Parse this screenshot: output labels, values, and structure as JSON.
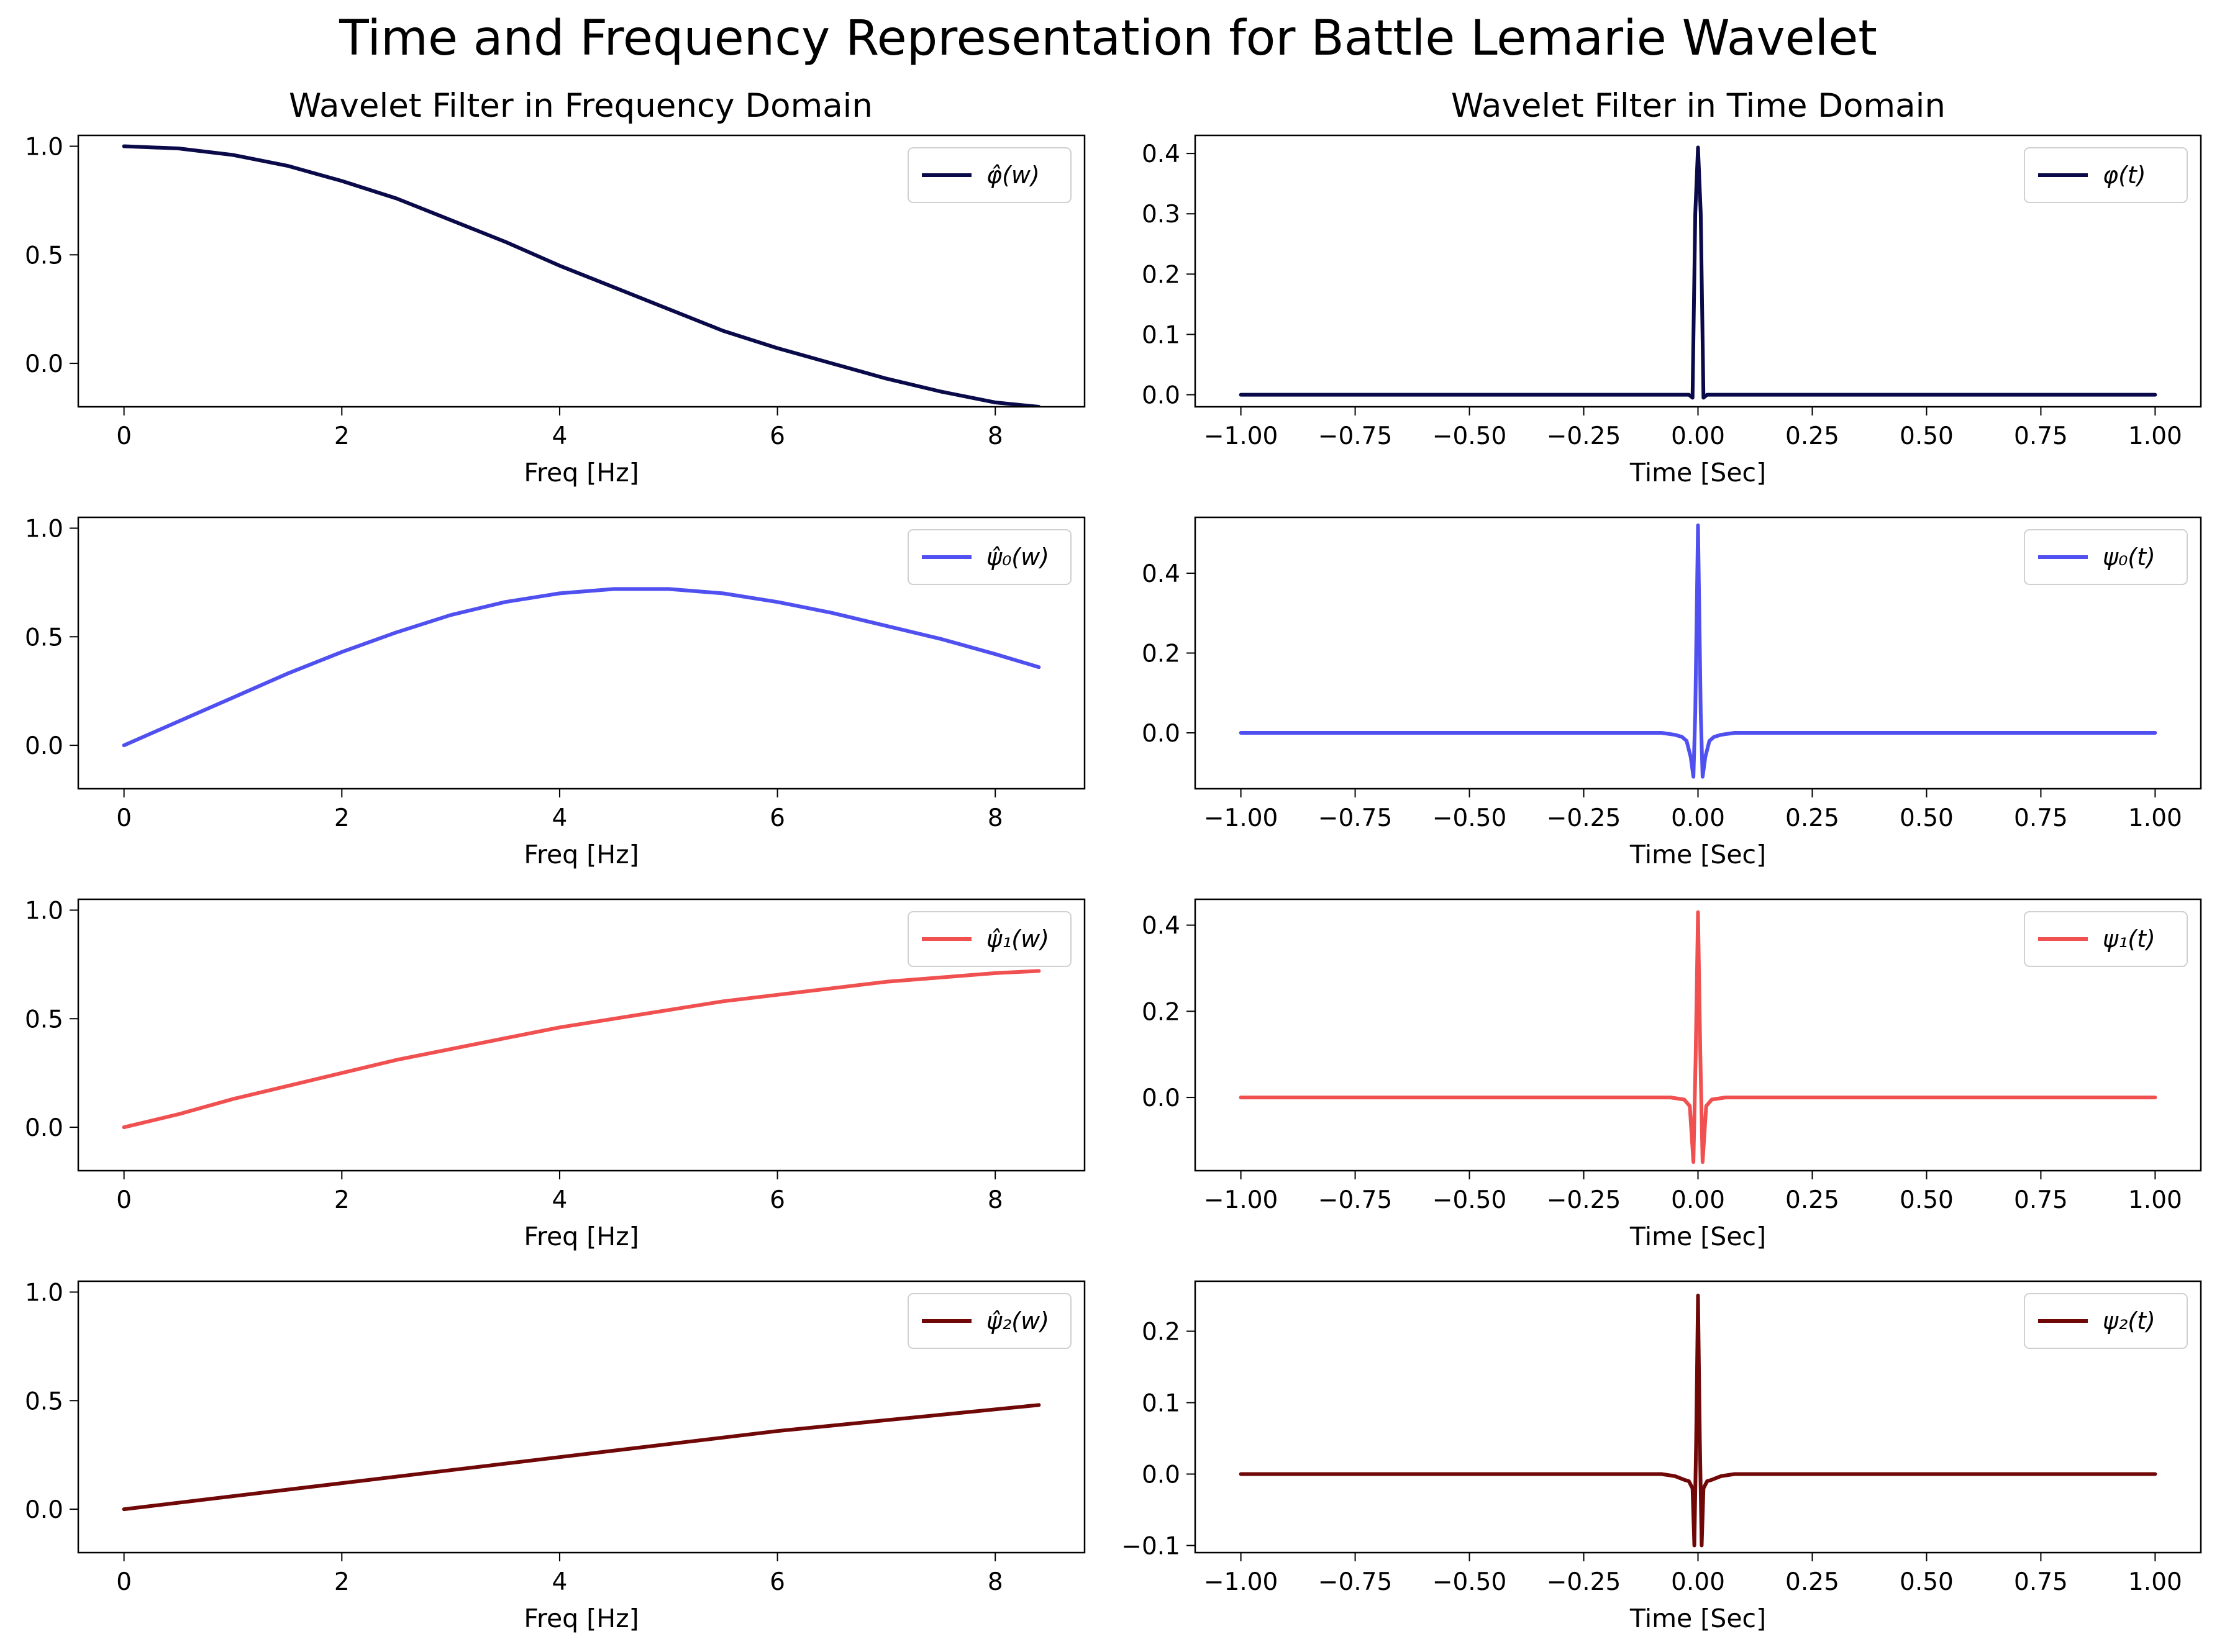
{
  "figure": {
    "title": "Time and Frequency Representation for Battle Lemarie Wavelet",
    "columns": [
      {
        "title": "Wavelet Filter in Frequency Domain"
      },
      {
        "title": "Wavelet Filter in Time Domain"
      }
    ]
  },
  "chart_data": [
    {
      "type": "line",
      "panel": "freq-0",
      "xlabel": "Freq [Hz]",
      "xlim": [
        -0.42,
        8.82
      ],
      "ylim": [
        -0.2,
        1.05
      ],
      "xticks": [
        0,
        2,
        4,
        6,
        8
      ],
      "xtick_labels": [
        "0",
        "2",
        "4",
        "6",
        "8"
      ],
      "yticks": [
        0.0,
        0.5,
        1.0
      ],
      "ytick_labels": [
        "0.0",
        "0.5",
        "1.0"
      ],
      "legend": "upper right",
      "series": [
        {
          "name": "φ̂(w)",
          "color": "#0a0a4a",
          "x": [
            0,
            0.5,
            1,
            1.5,
            2,
            2.5,
            3,
            3.5,
            4,
            4.5,
            5,
            5.5,
            6,
            6.5,
            7,
            7.5,
            8,
            8.4
          ],
          "y": [
            1.0,
            0.99,
            0.96,
            0.91,
            0.84,
            0.76,
            0.66,
            0.56,
            0.45,
            0.35,
            0.25,
            0.15,
            0.07,
            0.0,
            -0.07,
            -0.13,
            -0.18,
            -0.2
          ]
        }
      ]
    },
    {
      "type": "line",
      "panel": "time-0",
      "xlabel": "Time [Sec]",
      "xlim": [
        -1.1,
        1.1
      ],
      "ylim": [
        -0.02,
        0.43
      ],
      "xticks": [
        -1.0,
        -0.75,
        -0.5,
        -0.25,
        0.0,
        0.25,
        0.5,
        0.75,
        1.0
      ],
      "xtick_labels": [
        "−1.00",
        "−0.75",
        "−0.50",
        "−0.25",
        "0.00",
        "0.25",
        "0.50",
        "0.75",
        "1.00"
      ],
      "yticks": [
        0.0,
        0.1,
        0.2,
        0.3,
        0.4
      ],
      "ytick_labels": [
        "0.0",
        "0.1",
        "0.2",
        "0.3",
        "0.4"
      ],
      "legend": "upper right",
      "series": [
        {
          "name": "φ(t)",
          "color": "#0a0a4a",
          "x": [
            -1.0,
            -0.02,
            -0.012,
            -0.006,
            0.0,
            0.006,
            0.012,
            0.02,
            1.0
          ],
          "y": [
            0.0,
            0.0,
            -0.005,
            0.3,
            0.41,
            0.3,
            -0.005,
            0.0,
            0.0
          ]
        }
      ]
    },
    {
      "type": "line",
      "panel": "freq-1",
      "xlabel": "Freq [Hz]",
      "xlim": [
        -0.42,
        8.82
      ],
      "ylim": [
        -0.2,
        1.05
      ],
      "xticks": [
        0,
        2,
        4,
        6,
        8
      ],
      "xtick_labels": [
        "0",
        "2",
        "4",
        "6",
        "8"
      ],
      "yticks": [
        0.0,
        0.5,
        1.0
      ],
      "ytick_labels": [
        "0.0",
        "0.5",
        "1.0"
      ],
      "legend": "upper right",
      "series": [
        {
          "name": "ψ̂₀(w)",
          "color": "#5050f0",
          "x": [
            0,
            0.5,
            1,
            1.5,
            2,
            2.5,
            3,
            3.5,
            4,
            4.5,
            5,
            5.5,
            6,
            6.5,
            7,
            7.5,
            8,
            8.4
          ],
          "y": [
            0.0,
            0.11,
            0.22,
            0.33,
            0.43,
            0.52,
            0.6,
            0.66,
            0.7,
            0.72,
            0.72,
            0.7,
            0.66,
            0.61,
            0.55,
            0.49,
            0.42,
            0.36
          ]
        }
      ]
    },
    {
      "type": "line",
      "panel": "time-1",
      "xlabel": "Time [Sec]",
      "xlim": [
        -1.1,
        1.1
      ],
      "ylim": [
        -0.14,
        0.54
      ],
      "xticks": [
        -1.0,
        -0.75,
        -0.5,
        -0.25,
        0.0,
        0.25,
        0.5,
        0.75,
        1.0
      ],
      "xtick_labels": [
        "−1.00",
        "−0.75",
        "−0.50",
        "−0.25",
        "0.00",
        "0.25",
        "0.50",
        "0.75",
        "1.00"
      ],
      "yticks": [
        0.0,
        0.2,
        0.4
      ],
      "ytick_labels": [
        "0.0",
        "0.2",
        "0.4"
      ],
      "legend": "upper right",
      "series": [
        {
          "name": "ψ₀(t)",
          "color": "#5050f0",
          "x": [
            -1.0,
            -0.08,
            -0.05,
            -0.035,
            -0.025,
            -0.016,
            -0.01,
            -0.006,
            0.0,
            0.006,
            0.01,
            0.016,
            0.025,
            0.035,
            0.05,
            0.08,
            1.0
          ],
          "y": [
            0.0,
            0.0,
            -0.005,
            -0.01,
            -0.02,
            -0.06,
            -0.11,
            0.05,
            0.52,
            0.05,
            -0.11,
            -0.06,
            -0.02,
            -0.01,
            -0.005,
            0.0,
            0.0
          ]
        }
      ]
    },
    {
      "type": "line",
      "panel": "freq-2",
      "xlabel": "Freq [Hz]",
      "xlim": [
        -0.42,
        8.82
      ],
      "ylim": [
        -0.2,
        1.05
      ],
      "xticks": [
        0,
        2,
        4,
        6,
        8
      ],
      "xtick_labels": [
        "0",
        "2",
        "4",
        "6",
        "8"
      ],
      "yticks": [
        0.0,
        0.5,
        1.0
      ],
      "ytick_labels": [
        "0.0",
        "0.5",
        "1.0"
      ],
      "legend": "upper right",
      "series": [
        {
          "name": "ψ̂₁(w)",
          "color": "#f05050",
          "x": [
            0,
            0.5,
            1,
            1.5,
            2,
            2.5,
            3,
            3.5,
            4,
            4.5,
            5,
            5.5,
            6,
            6.5,
            7,
            7.5,
            8,
            8.4
          ],
          "y": [
            0.0,
            0.06,
            0.13,
            0.19,
            0.25,
            0.31,
            0.36,
            0.41,
            0.46,
            0.5,
            0.54,
            0.58,
            0.61,
            0.64,
            0.67,
            0.69,
            0.71,
            0.72
          ]
        }
      ]
    },
    {
      "type": "line",
      "panel": "time-2",
      "xlabel": "Time [Sec]",
      "xlim": [
        -1.1,
        1.1
      ],
      "ylim": [
        -0.17,
        0.46
      ],
      "xticks": [
        -1.0,
        -0.75,
        -0.5,
        -0.25,
        0.0,
        0.25,
        0.5,
        0.75,
        1.0
      ],
      "xtick_labels": [
        "−1.00",
        "−0.75",
        "−0.50",
        "−0.25",
        "0.00",
        "0.25",
        "0.50",
        "0.75",
        "1.00"
      ],
      "yticks": [
        0.0,
        0.2,
        0.4
      ],
      "ytick_labels": [
        "0.0",
        "0.2",
        "0.4"
      ],
      "legend": "upper right",
      "series": [
        {
          "name": "ψ₁(t)",
          "color": "#f05050",
          "x": [
            -1.0,
            -0.06,
            -0.03,
            -0.018,
            -0.01,
            -0.005,
            0.0,
            0.005,
            0.01,
            0.018,
            0.03,
            0.06,
            1.0
          ],
          "y": [
            0.0,
            0.0,
            -0.005,
            -0.02,
            -0.15,
            0.1,
            0.43,
            0.1,
            -0.15,
            -0.02,
            -0.005,
            0.0,
            0.0
          ]
        }
      ]
    },
    {
      "type": "line",
      "panel": "freq-3",
      "xlabel": "Freq [Hz]",
      "xlim": [
        -0.42,
        8.82
      ],
      "ylim": [
        -0.2,
        1.05
      ],
      "xticks": [
        0,
        2,
        4,
        6,
        8
      ],
      "xtick_labels": [
        "0",
        "2",
        "4",
        "6",
        "8"
      ],
      "yticks": [
        0.0,
        0.5,
        1.0
      ],
      "ytick_labels": [
        "0.0",
        "0.5",
        "1.0"
      ],
      "legend": "upper right",
      "series": [
        {
          "name": "ψ̂₂(w)",
          "color": "#700808",
          "x": [
            0,
            1,
            2,
            3,
            4,
            5,
            6,
            7,
            8,
            8.4
          ],
          "y": [
            0.0,
            0.06,
            0.12,
            0.18,
            0.24,
            0.3,
            0.36,
            0.41,
            0.46,
            0.48
          ]
        }
      ]
    },
    {
      "type": "line",
      "panel": "time-3",
      "xlabel": "Time [Sec]",
      "xlim": [
        -1.1,
        1.1
      ],
      "ylim": [
        -0.11,
        0.27
      ],
      "xticks": [
        -1.0,
        -0.75,
        -0.5,
        -0.25,
        0.0,
        0.25,
        0.5,
        0.75,
        1.0
      ],
      "xtick_labels": [
        "−1.00",
        "−0.75",
        "−0.50",
        "−0.25",
        "0.00",
        "0.25",
        "0.50",
        "0.75",
        "1.00"
      ],
      "yticks": [
        -0.1,
        0.0,
        0.1,
        0.2
      ],
      "ytick_labels": [
        "−0.1",
        "0.0",
        "0.1",
        "0.2"
      ],
      "legend": "upper right",
      "series": [
        {
          "name": "ψ₂(t)",
          "color": "#700808",
          "x": [
            -1.0,
            -0.08,
            -0.05,
            -0.03,
            -0.02,
            -0.012,
            -0.008,
            -0.004,
            0.0,
            0.004,
            0.008,
            0.012,
            0.02,
            0.03,
            0.05,
            0.08,
            1.0
          ],
          "y": [
            0.0,
            0.0,
            -0.003,
            -0.008,
            -0.01,
            -0.02,
            -0.1,
            0.05,
            0.25,
            0.05,
            -0.1,
            -0.02,
            -0.01,
            -0.008,
            -0.003,
            0.0,
            0.0
          ]
        }
      ]
    }
  ]
}
